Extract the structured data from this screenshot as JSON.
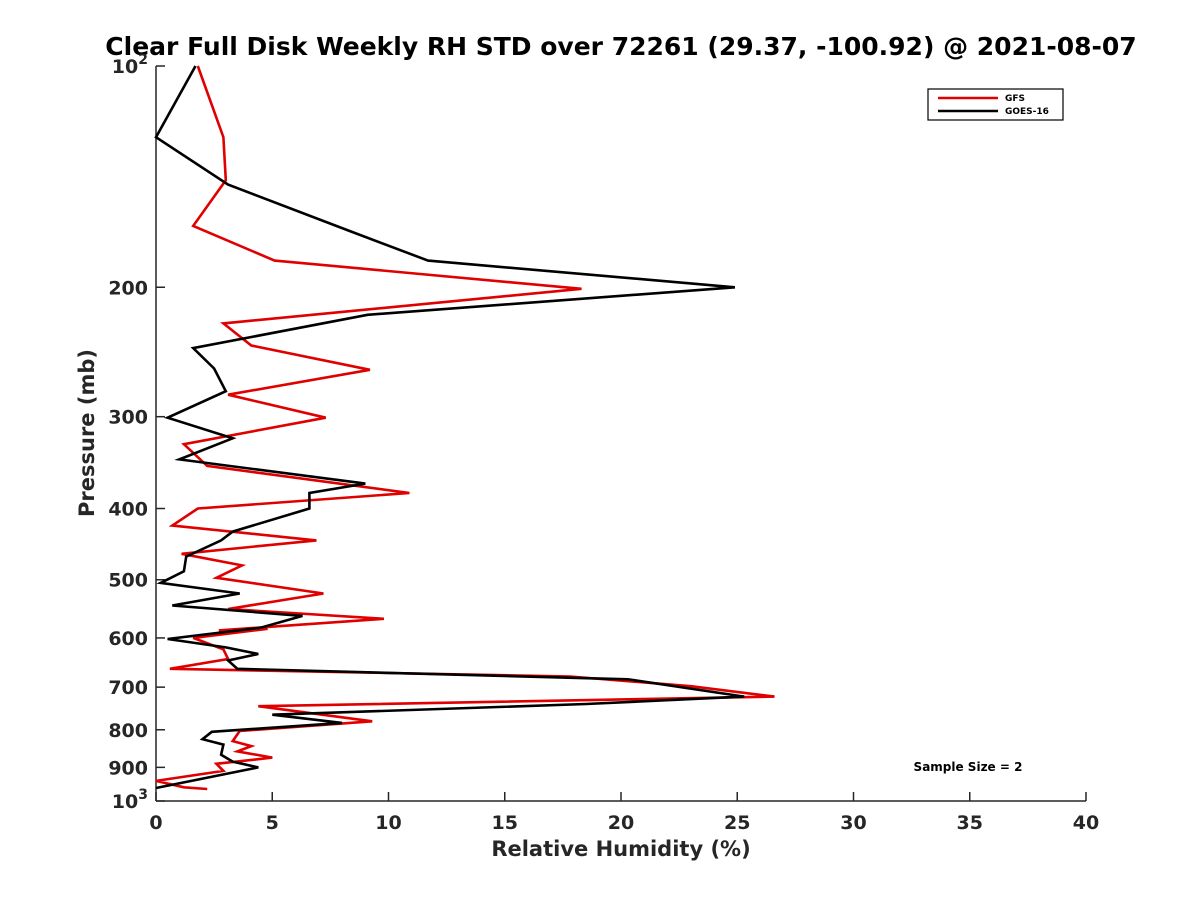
{
  "chart_data": {
    "type": "line",
    "title": "Clear Full Disk Weekly RH STD over 72261 (29.37, -100.92) @ 2021-08-07",
    "xlabel": "Relative Humidity (%)",
    "ylabel": "Pressure (mb)",
    "xlim": [
      0,
      40
    ],
    "ylim": [
      100,
      1000
    ],
    "y_scale": "log",
    "y_reversed": true,
    "grid": false,
    "legend_position": "top-right",
    "x_ticks": [
      "0",
      "5",
      "10",
      "15",
      "20",
      "25",
      "30",
      "35",
      "40"
    ],
    "y_ticks": [
      {
        "value": 100,
        "base": "10",
        "exp": "2"
      },
      {
        "value": 200,
        "label": "200"
      },
      {
        "value": 300,
        "label": "300"
      },
      {
        "value": 400,
        "label": "400"
      },
      {
        "value": 500,
        "label": "500"
      },
      {
        "value": 600,
        "label": "600"
      },
      {
        "value": 700,
        "label": "700"
      },
      {
        "value": 800,
        "label": "800"
      },
      {
        "value": 900,
        "label": "900"
      },
      {
        "value": 1000,
        "base": "10",
        "exp": "3"
      }
    ],
    "series": [
      {
        "name": "GFS",
        "color": "#e00000",
        "points": [
          [
            1.8,
            100
          ],
          [
            2.9,
            125
          ],
          [
            3.0,
            143
          ],
          [
            1.6,
            165
          ],
          [
            5.1,
            184
          ],
          [
            18.3,
            201
          ],
          [
            2.9,
            224
          ],
          [
            4.1,
            240
          ],
          [
            9.2,
            259
          ],
          [
            3.1,
            280
          ],
          [
            7.3,
            301
          ],
          [
            1.2,
            327
          ],
          [
            2.2,
            350
          ],
          [
            10.9,
            381
          ],
          [
            1.8,
            400
          ],
          [
            0.7,
            422
          ],
          [
            6.9,
            442
          ],
          [
            1.1,
            461
          ],
          [
            3.7,
            478
          ],
          [
            2.6,
            497
          ],
          [
            7.2,
            522
          ],
          [
            3.1,
            548
          ],
          [
            9.8,
            565
          ],
          [
            2.7,
            586
          ],
          [
            4.8,
            583
          ],
          [
            1.6,
            600
          ],
          [
            2.9,
            622
          ],
          [
            3.1,
            641
          ],
          [
            0.6,
            661
          ],
          [
            17.8,
            677
          ],
          [
            23.0,
            698
          ],
          [
            26.6,
            721
          ],
          [
            4.4,
            743
          ],
          [
            9.3,
            779
          ],
          [
            3.6,
            803
          ],
          [
            3.3,
            829
          ],
          [
            4.1,
            842
          ],
          [
            3.5,
            856
          ],
          [
            5.0,
            873
          ],
          [
            2.6,
            890
          ],
          [
            2.9,
            910
          ],
          [
            0.0,
            939
          ],
          [
            1.2,
            958
          ],
          [
            2.2,
            963
          ]
        ]
      },
      {
        "name": "GOES-16",
        "color": "#000000",
        "points": [
          [
            1.7,
            100
          ],
          [
            0.0,
            125
          ],
          [
            3.1,
            145
          ],
          [
            8.4,
            168
          ],
          [
            11.7,
            184
          ],
          [
            24.9,
            200
          ],
          [
            9.1,
            218
          ],
          [
            1.6,
            242
          ],
          [
            2.5,
            258
          ],
          [
            3.0,
            277
          ],
          [
            0.5,
            301
          ],
          [
            3.3,
            321
          ],
          [
            1.0,
            343
          ],
          [
            9.0,
            370
          ],
          [
            6.6,
            381
          ],
          [
            6.6,
            400
          ],
          [
            3.3,
            430
          ],
          [
            2.8,
            442
          ],
          [
            1.3,
            465
          ],
          [
            1.2,
            487
          ],
          [
            0.2,
            505
          ],
          [
            3.6,
            522
          ],
          [
            0.7,
            542
          ],
          [
            6.3,
            560
          ],
          [
            4.5,
            581
          ],
          [
            0.5,
            602
          ],
          [
            3.0,
            618
          ],
          [
            4.4,
            631
          ],
          [
            3.1,
            644
          ],
          [
            3.5,
            661
          ],
          [
            20.3,
            683
          ],
          [
            25.3,
            721
          ],
          [
            18.5,
            738
          ],
          [
            5.0,
            763
          ],
          [
            8.0,
            783
          ],
          [
            2.4,
            805
          ],
          [
            2.0,
            824
          ],
          [
            2.9,
            838
          ],
          [
            2.8,
            865
          ],
          [
            3.3,
            884
          ],
          [
            4.4,
            900
          ],
          [
            0.0,
            960
          ]
        ]
      }
    ],
    "annotations": [
      "Sample Size = 2"
    ]
  }
}
